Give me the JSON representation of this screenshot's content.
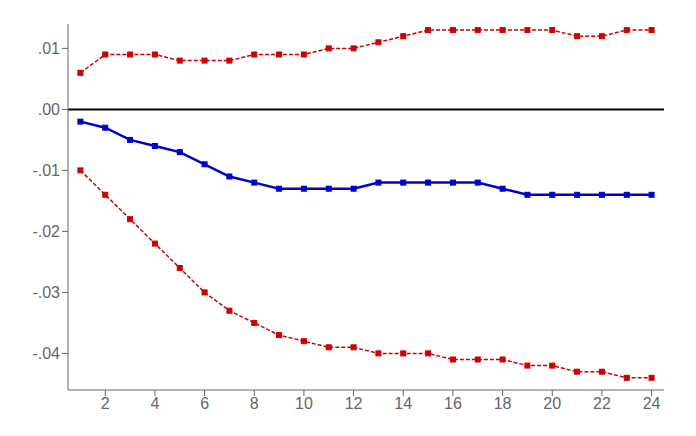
{
  "chart_data": {
    "type": "line",
    "x": [
      1,
      2,
      3,
      4,
      5,
      6,
      7,
      8,
      9,
      10,
      11,
      12,
      13,
      14,
      15,
      16,
      17,
      18,
      19,
      20,
      21,
      22,
      23,
      24
    ],
    "series": [
      {
        "color": "#cc0000",
        "line_style": "dashed",
        "marker": "square",
        "values": [
          0.006,
          0.009,
          0.009,
          0.009,
          0.008,
          0.008,
          0.008,
          0.009,
          0.009,
          0.009,
          0.01,
          0.01,
          0.011,
          0.012,
          0.013,
          0.013,
          0.013,
          0.013,
          0.013,
          0.013,
          0.012,
          0.012,
          0.013,
          0.013
        ]
      },
      {
        "color": "#cc0000",
        "line_style": "dashed",
        "marker": "square",
        "values": [
          -0.01,
          -0.014,
          -0.018,
          -0.022,
          -0.026,
          -0.03,
          -0.033,
          -0.035,
          -0.037,
          -0.038,
          -0.039,
          -0.039,
          -0.04,
          -0.04,
          -0.04,
          -0.041,
          -0.041,
          -0.041,
          -0.042,
          -0.042,
          -0.043,
          -0.043,
          -0.044,
          -0.044
        ]
      },
      {
        "color": "#0000cc",
        "line_style": "solid",
        "marker": "square",
        "values": [
          -0.002,
          -0.003,
          -0.005,
          -0.006,
          -0.007,
          -0.009,
          -0.011,
          -0.012,
          -0.013,
          -0.013,
          -0.013,
          -0.013,
          -0.012,
          -0.012,
          -0.012,
          -0.012,
          -0.012,
          -0.013,
          -0.014,
          -0.014,
          -0.014,
          -0.014,
          -0.014,
          -0.014
        ]
      }
    ],
    "hline": {
      "value": 0,
      "color": "#000000"
    },
    "xlim": [
      0.5,
      24.5
    ],
    "ylim": [
      -0.046,
      0.014
    ],
    "xticks": [
      2,
      4,
      6,
      8,
      10,
      12,
      14,
      16,
      18,
      20,
      22,
      24
    ],
    "yticks": [
      {
        "value": -0.04,
        "label": "-.04"
      },
      {
        "value": -0.03,
        "label": "-.03"
      },
      {
        "value": -0.02,
        "label": "-.02"
      },
      {
        "value": -0.01,
        "label": "-.01"
      },
      {
        "value": 0.0,
        "label": ".00"
      },
      {
        "value": 0.01,
        "label": ".01"
      }
    ],
    "grid": false
  }
}
